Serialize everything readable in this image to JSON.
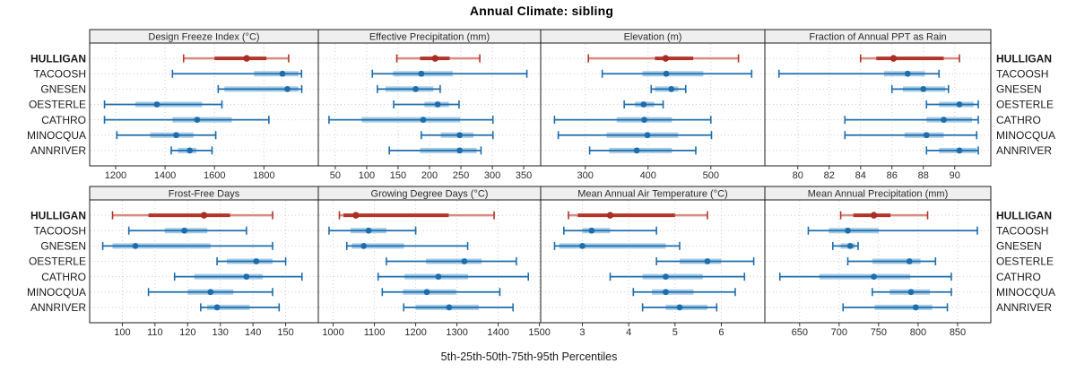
{
  "title": "Annual Climate: sibling",
  "footer": "5th-25th-50th-75th-95th Percentiles",
  "highlight_station": "HULLIGAN",
  "colors": {
    "blue_dark": "#1d6dad",
    "blue_light": "#a5cbe5",
    "red_dark": "#b23529",
    "red_light": "#d98a82",
    "red_dot": "#a82e26",
    "strip_bg": "#efefef",
    "panel_border": "#1b1b1b",
    "grid": "#cdcdcd",
    "tick_text": "#2a2a2a",
    "label_text": "#1a1a1a"
  },
  "chart_data": {
    "type": "percentile-dotplot-trellis",
    "title": "Annual Climate: sibling",
    "xlabel": "5th-25th-50th-75th-95th Percentiles",
    "percentiles": [
      5,
      25,
      50,
      75,
      95
    ],
    "legend_position": "none",
    "grid": "dotted",
    "stations": [
      "HULLIGAN",
      "TACOOSH",
      "GNESEN",
      "OESTERLE",
      "CATHRO",
      "MINOCQUA",
      "ANNRIVER"
    ],
    "panels": [
      {
        "title": "Design Freeze Index (°C)",
        "row": 0,
        "col": 0,
        "xlim": [
          1095,
          2020
        ],
        "ticks": [
          1200,
          1400,
          1600,
          1800
        ],
        "values": {
          "HULLIGAN": [
            1475,
            1600,
            1730,
            1810,
            1900
          ],
          "TACOOSH": [
            1430,
            1760,
            1875,
            1940,
            1952
          ],
          "GNESEN": [
            1615,
            1640,
            1895,
            1940,
            1953
          ],
          "OESTERLE": [
            1155,
            1280,
            1367,
            1550,
            1630
          ],
          "CATHRO": [
            1155,
            1430,
            1530,
            1670,
            1820
          ],
          "MINOCQUA": [
            1205,
            1340,
            1445,
            1515,
            1605
          ],
          "ANNRIVER": [
            1425,
            1452,
            1500,
            1527,
            1590
          ]
        }
      },
      {
        "title": "Effective Precipitation (mm)",
        "row": 0,
        "col": 1,
        "xlim": [
          23,
          377
        ],
        "ticks": [
          50,
          100,
          150,
          200,
          250,
          300,
          350
        ],
        "values": {
          "HULLIGAN": [
            148,
            185,
            209,
            232,
            280
          ],
          "TACOOSH": [
            109,
            142,
            187,
            237,
            355
          ],
          "GNESEN": [
            117,
            130,
            178,
            206,
            217
          ],
          "OESTERLE": [
            143,
            192,
            213,
            231,
            247
          ],
          "CATHRO": [
            40,
            92,
            190,
            249,
            301
          ],
          "MINOCQUA": [
            187,
            218,
            248,
            270,
            301
          ],
          "ANNRIVER": [
            136,
            185,
            248,
            275,
            282
          ]
        }
      },
      {
        "title": "Elevation (m)",
        "row": 0,
        "col": 2,
        "xlim": [
          229,
          586
        ],
        "ticks": [
          300,
          400,
          500
        ],
        "values": {
          "HULLIGAN": [
            305,
            411,
            428,
            472,
            544
          ],
          "TACOOSH": [
            327,
            391,
            429,
            488,
            565
          ],
          "GNESEN": [
            405,
            411,
            437,
            448,
            460
          ],
          "OESTERLE": [
            362,
            379,
            393,
            410,
            424
          ],
          "CATHRO": [
            251,
            350,
            394,
            438,
            500
          ],
          "MINOCQUA": [
            257,
            334,
            399,
            448,
            501
          ],
          "ANNRIVER": [
            307,
            338,
            382,
            438,
            476
          ]
        }
      },
      {
        "title": "Fraction of Annual PPT as Rain",
        "row": 0,
        "col": 3,
        "xlim": [
          77.9,
          92.3
        ],
        "ticks": [
          80,
          82,
          84,
          86,
          88,
          90
        ],
        "values": {
          "HULLIGAN": [
            84,
            85,
            86.1,
            89.3,
            90.3
          ],
          "TACOOSH": [
            78.8,
            85.5,
            87,
            88.1,
            89
          ],
          "GNESEN": [
            86,
            86.7,
            88,
            89.4,
            89.6
          ],
          "OESTERLE": [
            88.2,
            89,
            90.3,
            91.2,
            91.5
          ],
          "CATHRO": [
            83,
            88.2,
            89.3,
            91.1,
            91.5
          ],
          "MINOCQUA": [
            83,
            86.8,
            88.2,
            89.3,
            91.4
          ],
          "ANNRIVER": [
            88.2,
            89,
            90.3,
            91.4,
            91.5
          ]
        }
      },
      {
        "title": "Frost-Free Days",
        "row": 1,
        "col": 0,
        "xlim": [
          90,
          160
        ],
        "ticks": [
          100,
          110,
          120,
          130,
          140,
          150
        ],
        "values": {
          "HULLIGAN": [
            97,
            108,
            125,
            133,
            146
          ],
          "TACOOSH": [
            102,
            113,
            119,
            126,
            138
          ],
          "GNESEN": [
            94,
            97,
            104,
            127,
            146
          ],
          "OESTERLE": [
            129,
            132,
            141,
            146,
            150
          ],
          "CATHRO": [
            116,
            122,
            138,
            143,
            155
          ],
          "MINOCQUA": [
            108,
            120,
            127,
            134,
            146
          ],
          "ANNRIVER": [
            124,
            126,
            129,
            139,
            148
          ]
        }
      },
      {
        "title": "Growing Degree Days (°C)",
        "row": 1,
        "col": 1,
        "xlim": [
          964,
          1503
        ],
        "ticks": [
          1000,
          1100,
          1200,
          1300,
          1400,
          1500
        ],
        "values": {
          "HULLIGAN": [
            1015,
            1025,
            1055,
            1280,
            1390
          ],
          "TACOOSH": [
            990,
            1042,
            1086,
            1129,
            1200
          ],
          "GNESEN": [
            1033,
            1045,
            1074,
            1172,
            1326
          ],
          "OESTERLE": [
            1129,
            1225,
            1318,
            1360,
            1444
          ],
          "CATHRO": [
            1109,
            1173,
            1255,
            1327,
            1473
          ],
          "MINOCQUA": [
            1119,
            1169,
            1227,
            1298,
            1404
          ],
          "ANNRIVER": [
            1171,
            1200,
            1281,
            1353,
            1436
          ]
        }
      },
      {
        "title": "Mean Annual Air Temperature (°C)",
        "row": 1,
        "col": 2,
        "xlim": [
          2.1,
          6.94
        ],
        "ticks": [
          3,
          4,
          5,
          6
        ],
        "values": {
          "HULLIGAN": [
            2.7,
            2.9,
            3.6,
            5.0,
            5.7
          ],
          "TACOOSH": [
            2.6,
            3.0,
            3.2,
            3.6,
            4.6
          ],
          "GNESEN": [
            2.4,
            2.5,
            3.0,
            4.8,
            5.1
          ],
          "OESTERLE": [
            4.6,
            5.1,
            5.7,
            6.0,
            6.7
          ],
          "CATHRO": [
            3.6,
            4.3,
            4.8,
            5.6,
            6.5
          ],
          "MINOCQUA": [
            4.1,
            4.5,
            4.8,
            5.4,
            6.3
          ],
          "ANNRIVER": [
            4.3,
            4.8,
            5.1,
            5.7,
            5.9
          ]
        }
      },
      {
        "title": "Mean Annual Precipitation (mm)",
        "row": 1,
        "col": 3,
        "xlim": [
          606,
          892
        ],
        "ticks": [
          650,
          700,
          750,
          800,
          850
        ],
        "values": {
          "HULLIGAN": [
            702,
            718,
            744,
            765,
            812
          ],
          "TACOOSH": [
            661,
            687,
            711,
            750,
            875
          ],
          "GNESEN": [
            692,
            702,
            714,
            720,
            724
          ],
          "OESTERLE": [
            711,
            742,
            789,
            803,
            822
          ],
          "CATHRO": [
            625,
            675,
            744,
            790,
            842
          ],
          "MINOCQUA": [
            742,
            764,
            791,
            815,
            842
          ],
          "ANNRIVER": [
            705,
            745,
            797,
            818,
            837
          ]
        }
      }
    ]
  }
}
